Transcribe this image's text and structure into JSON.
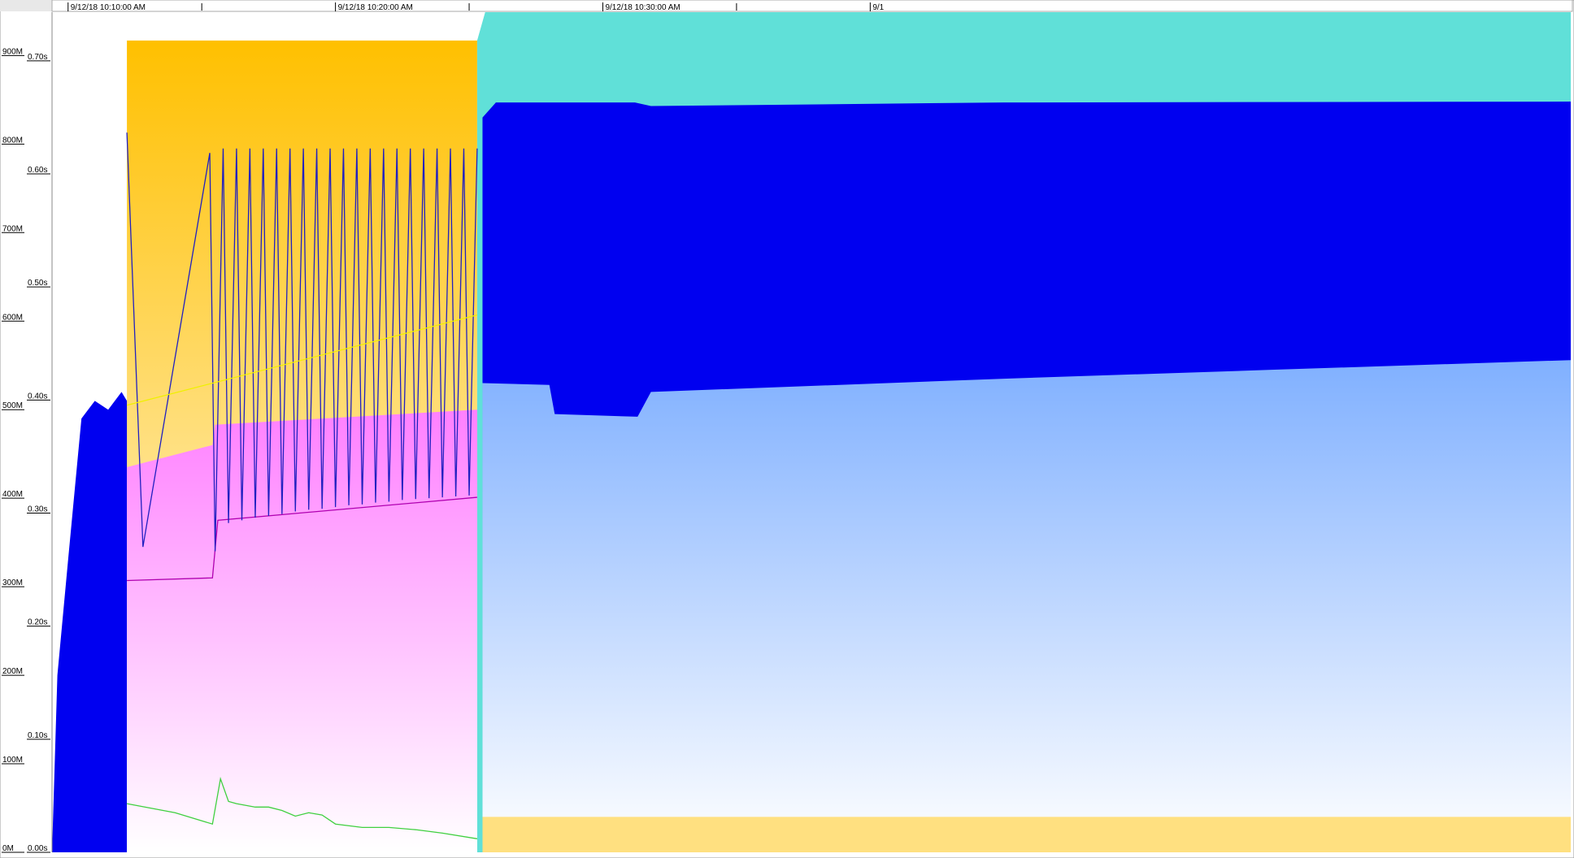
{
  "chart_data": {
    "type": "area",
    "xlim": [
      9.4,
      66.2
    ],
    "xticks": [
      {
        "value": 10,
        "label": "9/12/18 10:10:00 AM"
      },
      {
        "value": 20,
        "label": "9/12/18 10:20:00 AM"
      },
      {
        "value": 30,
        "label": "9/12/18 10:30:00 AM"
      },
      {
        "value": 40,
        "label": "9/1"
      }
    ],
    "xminorticks": [
      15,
      25,
      35
    ],
    "ylim": [
      0,
      949
    ],
    "yticks": [
      {
        "value": 0,
        "label": "0M"
      },
      {
        "value": 100,
        "label": "100M"
      },
      {
        "value": 200,
        "label": "200M"
      },
      {
        "value": 300,
        "label": "300M"
      },
      {
        "value": 400,
        "label": "400M"
      },
      {
        "value": 500,
        "label": "500M"
      },
      {
        "value": 600,
        "label": "600M"
      },
      {
        "value": 700,
        "label": "700M"
      },
      {
        "value": 800,
        "label": "800M"
      },
      {
        "value": 900,
        "label": "900M"
      }
    ],
    "y2lim": [
      0,
      0.743
    ],
    "y2ticks": [
      {
        "value": 0,
        "label": "0.00s"
      },
      {
        "value": 0.1,
        "label": "0.10s"
      },
      {
        "value": 0.2,
        "label": "0.20s"
      },
      {
        "value": 0.3,
        "label": "0.30s"
      },
      {
        "value": 0.4,
        "label": "0.40s"
      },
      {
        "value": 0.5,
        "label": "0.50s"
      },
      {
        "value": 0.6,
        "label": "0.60s"
      },
      {
        "value": 0.7,
        "label": "0.70s"
      }
    ],
    "series": [
      {
        "color": "#ffc000",
        "fill": "gradient",
        "x": [
          12.2,
          25.3
        ],
        "values": [
          917,
          917
        ]
      },
      {
        "color": "#60e0d8",
        "fill": "solid",
        "x": [
          25.3,
          25.6,
          66.2
        ],
        "values": [
          917,
          949,
          949
        ]
      },
      {
        "color": "#0000f0",
        "fill": "solid",
        "x": [
          9.4,
          9.6,
          10.0,
          10.5,
          11.0,
          11.5,
          12.0,
          12.2
        ],
        "values": [
          0,
          200,
          330,
          490,
          510,
          500,
          520,
          510
        ]
      },
      {
        "color": "#0000f0",
        "fill": "solid",
        "x": [
          25.5,
          26.0,
          31.2,
          31.8,
          45.0,
          66.2
        ],
        "values": [
          830,
          847,
          847,
          843,
          847,
          848
        ]
      },
      {
        "color": "#80b0ff",
        "fill": "gradient",
        "x": [
          25.5,
          28.0,
          28.2,
          31.3,
          31.8,
          45.0,
          55.0,
          66.2
        ],
        "values": [
          530,
          528,
          495,
          492,
          520,
          535,
          545,
          556
        ]
      },
      {
        "color": "#ff80ff",
        "fill": "gradient",
        "x": [
          12.2,
          15.4,
          15.5,
          25.3
        ],
        "values": [
          435,
          460,
          483,
          500
        ]
      },
      {
        "color": "#ffe080",
        "fill": "solid",
        "x": [
          25.5,
          66.2
        ],
        "values": [
          40,
          40
        ]
      },
      {
        "color": "#b000b0",
        "fill": "none",
        "x": [
          12.2,
          15.4,
          15.6,
          25.3
        ],
        "values": [
          307,
          310,
          375,
          401
        ]
      },
      {
        "color": "#2020c0",
        "fill": "none",
        "x": [
          12.2,
          12.8,
          15.3,
          15.5,
          15.8,
          16.0,
          16.3,
          16.5,
          16.8,
          17.0,
          17.3,
          17.5,
          17.8,
          18.0,
          18.3,
          18.5,
          18.8,
          19.0,
          19.3,
          19.5,
          19.8,
          20.0,
          20.3,
          20.5,
          20.8,
          21.0,
          21.3,
          21.5,
          21.8,
          22.0,
          22.3,
          22.5,
          22.8,
          23.0,
          23.3,
          23.5,
          23.8,
          24.0,
          24.3,
          24.5,
          24.8,
          25.0,
          25.3
        ],
        "values": [
          813,
          345,
          790,
          340,
          795,
          372,
          795,
          375,
          795,
          378,
          795,
          380,
          795,
          382,
          795,
          385,
          795,
          387,
          795,
          388,
          795,
          390,
          795,
          392,
          795,
          393,
          795,
          395,
          795,
          396,
          795,
          398,
          795,
          399,
          795,
          400,
          795,
          401,
          795,
          402,
          795,
          403,
          795
        ]
      },
      {
        "color": "#f0f000",
        "fill": "none",
        "x": [
          12.2,
          25.3
        ],
        "values": [
          505,
          607
        ]
      },
      {
        "color": "#40d040",
        "fill": "none",
        "axis": "y2",
        "x": [
          12.2,
          14.0,
          15.4,
          15.7,
          16.0,
          16.3,
          17.0,
          17.5,
          18.0,
          18.5,
          19.0,
          19.5,
          20.0,
          21.0,
          22.0,
          23.0,
          24.0,
          25.3
        ],
        "values": [
          0.043,
          0.035,
          0.025,
          0.065,
          0.045,
          0.043,
          0.04,
          0.04,
          0.037,
          0.032,
          0.035,
          0.033,
          0.025,
          0.022,
          0.022,
          0.02,
          0.017,
          0.012
        ]
      }
    ]
  }
}
